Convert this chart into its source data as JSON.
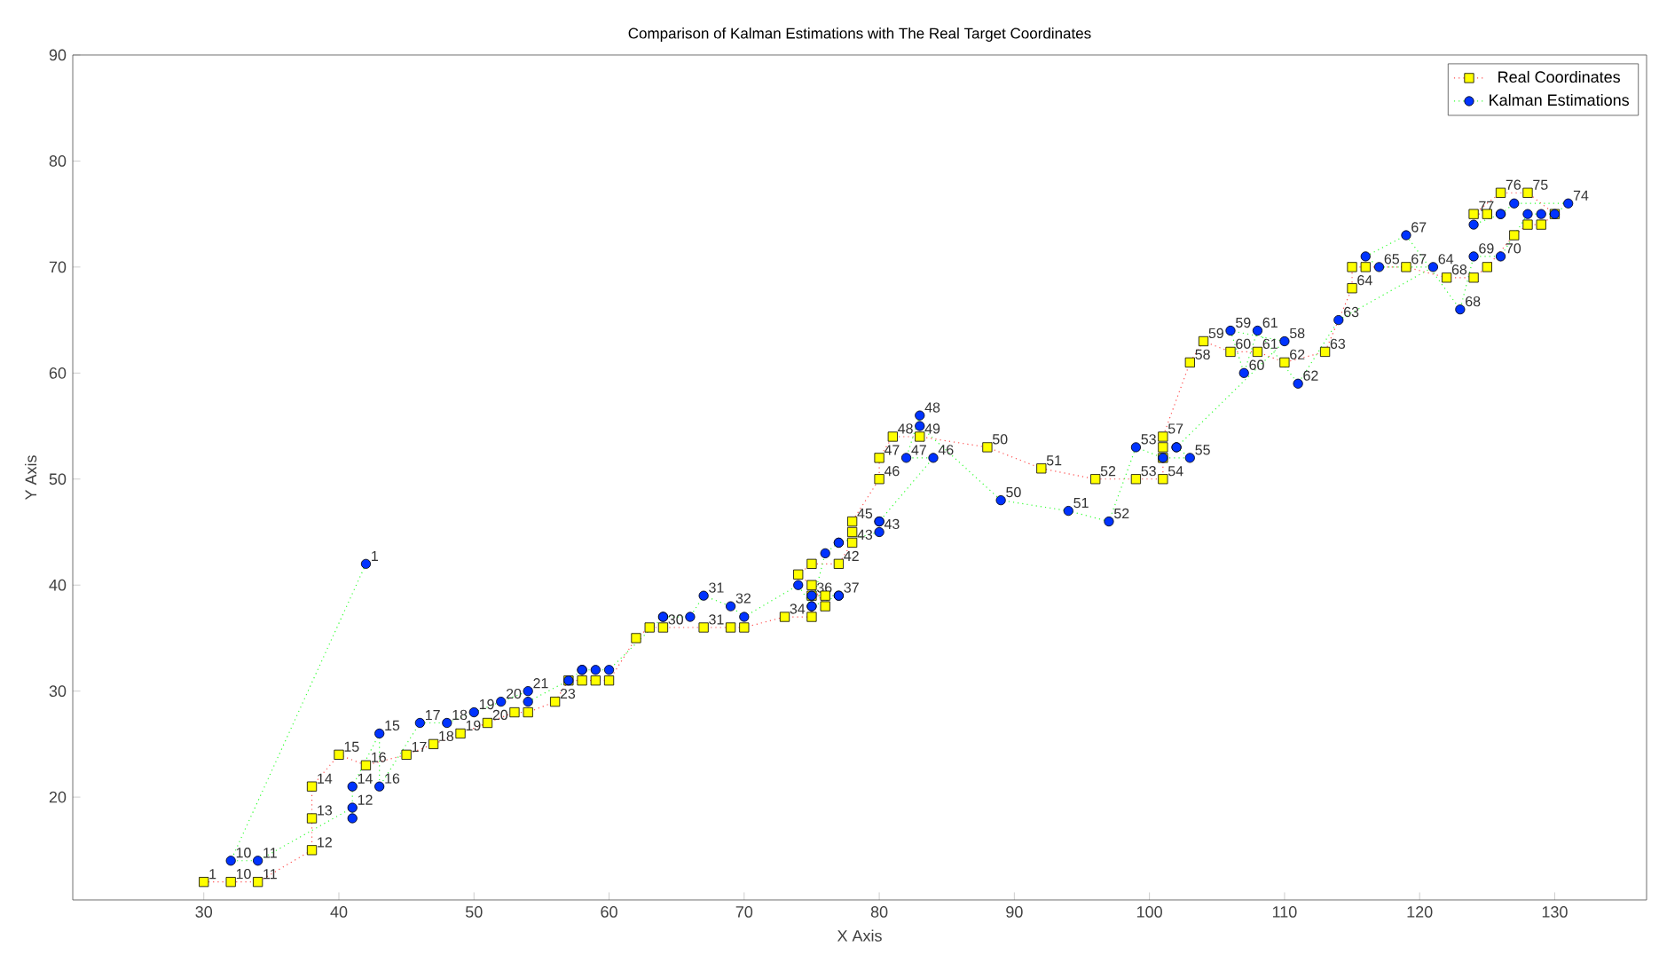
{
  "chart_data": {
    "type": "line",
    "title": "Comparison of Kalman Estimations with The Real Target Coordinates",
    "xlabel": "X Axis",
    "ylabel": "Y Axis",
    "xlim": [
      20.3,
      136.8
    ],
    "ylim": [
      10.3,
      90
    ],
    "xticks": [
      30,
      40,
      50,
      60,
      70,
      80,
      90,
      100,
      110,
      120,
      130
    ],
    "yticks": [
      20,
      30,
      40,
      50,
      60,
      70,
      80,
      90
    ],
    "legend": "top right",
    "line_style": "dotted",
    "series": [
      {
        "name": "Real Coordinates",
        "color": "#ffff00",
        "marker": "square",
        "x": [
          30,
          32,
          34,
          38,
          38,
          38,
          40,
          42,
          45,
          47,
          49,
          51,
          53,
          54,
          56,
          57,
          58,
          59,
          60,
          62,
          63,
          64,
          67,
          69,
          70,
          73,
          75,
          75,
          76,
          76,
          75,
          74,
          75,
          77,
          78,
          78,
          78,
          80,
          80,
          81,
          83,
          88,
          92,
          96,
          99,
          101,
          101,
          101,
          101,
          103,
          104,
          106,
          108,
          110,
          113,
          115,
          115,
          116,
          119,
          122,
          124,
          125,
          127,
          128,
          129,
          130,
          128,
          126,
          124,
          125
        ],
        "values": [
          12,
          12,
          12,
          15,
          18,
          21,
          24,
          23,
          24,
          25,
          26,
          27,
          28,
          28,
          29,
          31,
          31,
          31,
          31,
          35,
          36,
          36,
          36,
          36,
          36,
          37,
          37,
          39,
          39,
          38,
          40,
          41,
          42,
          42,
          44,
          45,
          46,
          50,
          52,
          54,
          54,
          53,
          51,
          50,
          50,
          50,
          52,
          53,
          54,
          61,
          63,
          62,
          62,
          61,
          62,
          68,
          70,
          70,
          70,
          69,
          69,
          70,
          73,
          74,
          74,
          75,
          77,
          77,
          75,
          75
        ]
      },
      {
        "name": "Kalman Estimations",
        "color": "#0033ff",
        "marker": "circle",
        "x": [
          42,
          32,
          34,
          41,
          41,
          41,
          43,
          43,
          46,
          48,
          50,
          52,
          54,
          54,
          57,
          58,
          58,
          59,
          60,
          64,
          64,
          66,
          67,
          69,
          70,
          74,
          75,
          75,
          77,
          77,
          75,
          76,
          77,
          77,
          80,
          80,
          80,
          84,
          82,
          83,
          83,
          89,
          94,
          97,
          99,
          101,
          103,
          102,
          102,
          110,
          106,
          107,
          108,
          111,
          114,
          121,
          117,
          116,
          119,
          123,
          124,
          126,
          128,
          129,
          130,
          131,
          127,
          126,
          126,
          124
        ],
        "values": [
          42,
          14,
          14,
          19,
          18,
          21,
          26,
          21,
          27,
          27,
          28,
          29,
          30,
          29,
          31,
          32,
          32,
          32,
          32,
          37,
          37,
          37,
          39,
          38,
          37,
          40,
          38,
          39,
          39,
          39,
          38,
          43,
          44,
          44,
          45,
          46,
          46,
          52,
          52,
          56,
          55,
          48,
          47,
          46,
          53,
          52,
          52,
          53,
          53,
          63,
          64,
          60,
          64,
          59,
          65,
          70,
          70,
          71,
          73,
          66,
          71,
          71,
          75,
          75,
          75,
          76,
          76,
          75,
          75,
          74
        ]
      }
    ],
    "annotations": [
      {
        "text": "1",
        "x": 30,
        "y": 12
      },
      {
        "text": "10",
        "x": 32,
        "y": 12
      },
      {
        "text": "11",
        "x": 34,
        "y": 12
      },
      {
        "text": "12",
        "x": 38,
        "y": 15
      },
      {
        "text": "13",
        "x": 38,
        "y": 18
      },
      {
        "text": "14",
        "x": 38,
        "y": 21
      },
      {
        "text": "15",
        "x": 40,
        "y": 24
      },
      {
        "text": "16",
        "x": 42,
        "y": 23
      },
      {
        "text": "17",
        "x": 45,
        "y": 24
      },
      {
        "text": "18",
        "x": 47,
        "y": 25
      },
      {
        "text": "19",
        "x": 49,
        "y": 26
      },
      {
        "text": "20",
        "x": 51,
        "y": 27
      },
      {
        "text": "23",
        "x": 56,
        "y": 29
      },
      {
        "text": "30",
        "x": 64,
        "y": 36
      },
      {
        "text": "31",
        "x": 67,
        "y": 36
      },
      {
        "text": "34",
        "x": 73,
        "y": 37
      },
      {
        "text": "36",
        "x": 75,
        "y": 39
      },
      {
        "text": "42",
        "x": 77,
        "y": 42
      },
      {
        "text": "43",
        "x": 78,
        "y": 44
      },
      {
        "text": "45",
        "x": 78,
        "y": 46
      },
      {
        "text": "46",
        "x": 80,
        "y": 50
      },
      {
        "text": "47",
        "x": 80,
        "y": 52
      },
      {
        "text": "48",
        "x": 81,
        "y": 54
      },
      {
        "text": "49",
        "x": 83,
        "y": 54
      },
      {
        "text": "50",
        "x": 88,
        "y": 53
      },
      {
        "text": "51",
        "x": 92,
        "y": 51
      },
      {
        "text": "52",
        "x": 96,
        "y": 50
      },
      {
        "text": "53",
        "x": 99,
        "y": 50
      },
      {
        "text": "54",
        "x": 101,
        "y": 50
      },
      {
        "text": "57",
        "x": 101,
        "y": 54
      },
      {
        "text": "58",
        "x": 103,
        "y": 61
      },
      {
        "text": "59",
        "x": 104,
        "y": 63
      },
      {
        "text": "60",
        "x": 106,
        "y": 62
      },
      {
        "text": "61",
        "x": 108,
        "y": 62
      },
      {
        "text": "62",
        "x": 110,
        "y": 61
      },
      {
        "text": "63",
        "x": 113,
        "y": 62
      },
      {
        "text": "64",
        "x": 115,
        "y": 68
      },
      {
        "text": "67",
        "x": 119,
        "y": 70
      },
      {
        "text": "68",
        "x": 122,
        "y": 69
      },
      {
        "text": "75",
        "x": 128,
        "y": 77
      },
      {
        "text": "76",
        "x": 126,
        "y": 77
      },
      {
        "text": "77",
        "x": 124,
        "y": 75
      },
      {
        "text": "1",
        "x": 42,
        "y": 42
      },
      {
        "text": "10",
        "x": 32,
        "y": 14
      },
      {
        "text": "11",
        "x": 34,
        "y": 14
      },
      {
        "text": "12",
        "x": 41,
        "y": 19
      },
      {
        "text": "14",
        "x": 41,
        "y": 21
      },
      {
        "text": "15",
        "x": 43,
        "y": 26
      },
      {
        "text": "16",
        "x": 43,
        "y": 21
      },
      {
        "text": "17",
        "x": 46,
        "y": 27
      },
      {
        "text": "18",
        "x": 48,
        "y": 27
      },
      {
        "text": "19",
        "x": 50,
        "y": 28
      },
      {
        "text": "20",
        "x": 52,
        "y": 29
      },
      {
        "text": "21",
        "x": 54,
        "y": 30
      },
      {
        "text": "31",
        "x": 67,
        "y": 39
      },
      {
        "text": "32",
        "x": 69,
        "y": 38
      },
      {
        "text": "37",
        "x": 77,
        "y": 39
      },
      {
        "text": "43",
        "x": 80,
        "y": 45
      },
      {
        "text": "46",
        "x": 84,
        "y": 52
      },
      {
        "text": "47",
        "x": 82,
        "y": 52
      },
      {
        "text": "48",
        "x": 83,
        "y": 56
      },
      {
        "text": "50",
        "x": 89,
        "y": 48
      },
      {
        "text": "51",
        "x": 94,
        "y": 47
      },
      {
        "text": "52",
        "x": 97,
        "y": 46
      },
      {
        "text": "53",
        "x": 99,
        "y": 53
      },
      {
        "text": "55",
        "x": 103,
        "y": 52
      },
      {
        "text": "58",
        "x": 110,
        "y": 63
      },
      {
        "text": "59",
        "x": 106,
        "y": 64
      },
      {
        "text": "60",
        "x": 107,
        "y": 60
      },
      {
        "text": "61",
        "x": 108,
        "y": 64
      },
      {
        "text": "62",
        "x": 111,
        "y": 59
      },
      {
        "text": "63",
        "x": 114,
        "y": 65
      },
      {
        "text": "64",
        "x": 121,
        "y": 70
      },
      {
        "text": "65",
        "x": 117,
        "y": 70
      },
      {
        "text": "67",
        "x": 119,
        "y": 73
      },
      {
        "text": "68",
        "x": 123,
        "y": 66
      },
      {
        "text": "69",
        "x": 124,
        "y": 71
      },
      {
        "text": "70",
        "x": 126,
        "y": 71
      },
      {
        "text": "74",
        "x": 131,
        "y": 76
      }
    ]
  }
}
